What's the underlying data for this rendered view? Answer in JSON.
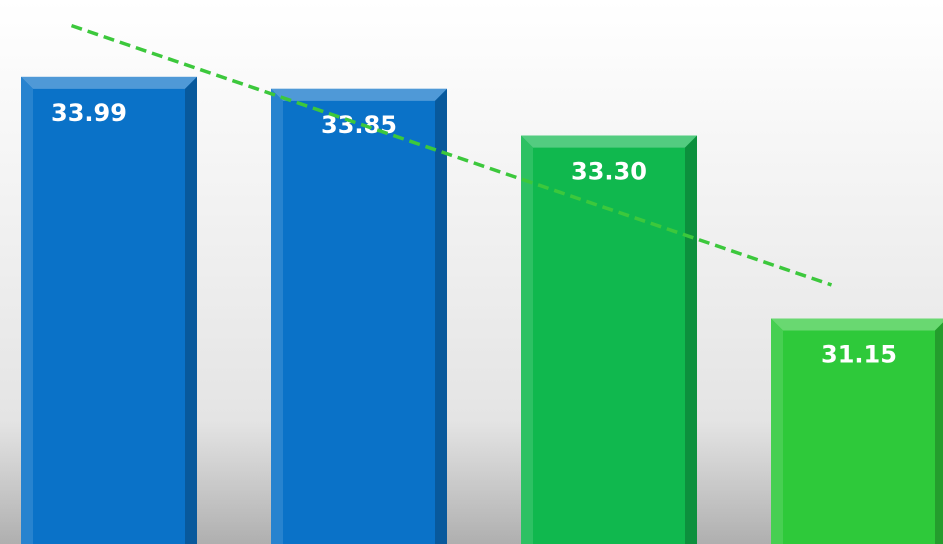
{
  "chart_data": {
    "type": "bar",
    "title": "",
    "xlabel": "",
    "ylabel": "",
    "categories": [
      "",
      "",
      "",
      ""
    ],
    "values": [
      33.99,
      33.85,
      33.3,
      31.15
    ],
    "value_labels": [
      "33.99",
      "33.85",
      "33.30",
      "31.15"
    ],
    "ylim": [
      28.5,
      34.8
    ],
    "grid": false,
    "legend": "none",
    "trendline": {
      "type": "linear",
      "style": "dashed",
      "color": "#3CC83C"
    },
    "colors": {
      "bar_blue": "#0A72C8",
      "bar_green_mid": "#10B84E",
      "bar_green_light": "#2EC93A",
      "label": "#ffffff"
    },
    "bar_colors": [
      "bar_blue",
      "bar_blue",
      "bar_green_mid",
      "bar_green_light"
    ]
  }
}
